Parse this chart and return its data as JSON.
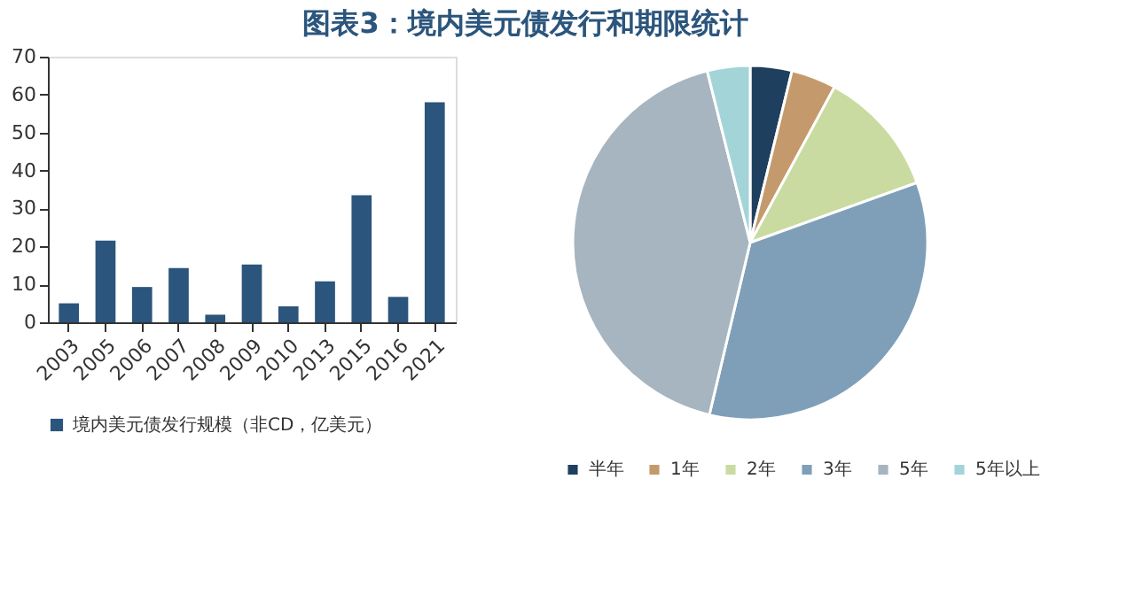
{
  "chart_data": [
    {
      "type": "bar",
      "title": "图表3：境内美元债发行和期限统计",
      "categories": [
        "2003",
        "2005",
        "2006",
        "2007",
        "2008",
        "2009",
        "2010",
        "2013",
        "2015",
        "2016",
        "2021"
      ],
      "series": [
        {
          "name": "境内美元债发行规模（非CD，亿美元）",
          "color": "#2b557c",
          "values": [
            5,
            21.5,
            9.3,
            14.3,
            2,
            15.2,
            4.2,
            10.8,
            33.5,
            6.7,
            58
          ]
        }
      ],
      "ylim": [
        0,
        70
      ],
      "yticks": [
        0,
        10,
        20,
        30,
        40,
        50,
        60,
        70
      ],
      "grid": false,
      "legend": "bottom"
    },
    {
      "type": "pie",
      "categories": [
        "半年",
        "1年",
        "2年",
        "3年",
        "5年",
        "5年以上"
      ],
      "values": [
        3.8,
        4.1,
        11.6,
        34.2,
        42.4,
        3.9
      ],
      "colors": [
        "#1f3f5f",
        "#c49a6c",
        "#c9dba0",
        "#7f9fb8",
        "#a6b5bf",
        "#a3d4d8"
      ],
      "legend": "bottom"
    }
  ]
}
